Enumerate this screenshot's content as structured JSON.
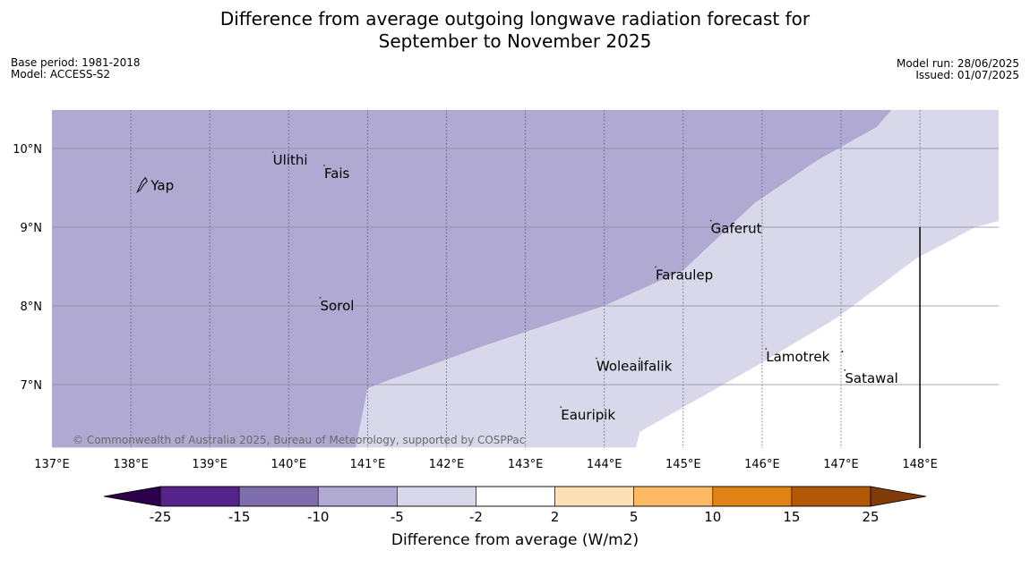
{
  "title": {
    "line1": "Difference from average outgoing longwave radiation forecast for",
    "line2": "September to November 2025"
  },
  "meta": {
    "base_period": "Base period: 1981-2018",
    "model": "Model: ACCESS-S2",
    "model_run": "Model run: 28/06/2025",
    "issued": "Issued: 01/07/2025"
  },
  "map": {
    "lon_range": [
      137,
      149
    ],
    "lat_range": [
      6.2,
      10.5
    ],
    "lon_ticks": [
      137,
      138,
      139,
      140,
      141,
      142,
      143,
      144,
      145,
      146,
      147,
      148
    ],
    "lon_tick_labels": [
      "137°E",
      "138°E",
      "139°E",
      "140°E",
      "141°E",
      "142°E",
      "143°E",
      "144°E",
      "145°E",
      "146°E",
      "147°E",
      "148°E"
    ],
    "lat_ticks": [
      7,
      8,
      9,
      10
    ],
    "lat_tick_labels": [
      "7°N",
      "8°N",
      "9°N",
      "10°N"
    ],
    "copyright": "© Commonwealth of Australia 2025, Bureau of Meteorology, supported by COSPPac",
    "boundary_line_lon": 148,
    "boundary_line_lat_range": [
      6.2,
      9.0
    ],
    "regions": [
      {
        "name": "anomaly -10 to -5",
        "color": "#b0aad2",
        "boundary": [
          [
            137,
            10.5
          ],
          [
            147.65,
            10.5
          ],
          [
            147.45,
            10.27
          ],
          [
            146.7,
            9.85
          ],
          [
            145.9,
            9.3
          ],
          [
            145.0,
            8.45
          ],
          [
            144.0,
            8.0
          ],
          [
            142.5,
            7.5
          ],
          [
            141.2,
            7.03
          ],
          [
            141.0,
            6.95
          ],
          [
            140.85,
            6.2
          ],
          [
            137,
            6.2
          ]
        ]
      },
      {
        "name": "anomaly -5 to -2",
        "color": "#d8d8ea",
        "boundary": [
          [
            147.65,
            10.5
          ],
          [
            149,
            10.5
          ],
          [
            149,
            9.08
          ],
          [
            148.7,
            9.0
          ],
          [
            147.95,
            8.6
          ],
          [
            146.95,
            7.85
          ],
          [
            145.95,
            7.25
          ],
          [
            144.45,
            6.4
          ],
          [
            144.4,
            6.2
          ],
          [
            140.85,
            6.2
          ],
          [
            141.0,
            6.95
          ],
          [
            141.2,
            7.03
          ],
          [
            142.5,
            7.5
          ],
          [
            144.0,
            8.0
          ],
          [
            145.0,
            8.45
          ],
          [
            145.9,
            9.3
          ],
          [
            146.7,
            9.85
          ],
          [
            147.45,
            10.27
          ]
        ]
      }
    ],
    "places": [
      {
        "name": "Ulithi",
        "lon": 139.8,
        "lat": 9.92
      },
      {
        "name": "Fais",
        "lon": 140.45,
        "lat": 9.75
      },
      {
        "name": "Yap",
        "lon": 138.15,
        "lat": 9.55
      },
      {
        "name": "Gaferut",
        "lon": 145.35,
        "lat": 9.05
      },
      {
        "name": "Faraulep",
        "lon": 144.65,
        "lat": 8.46
      },
      {
        "name": "Sorol",
        "lon": 140.4,
        "lat": 8.07
      },
      {
        "name": "Lamotrek",
        "lon": 146.05,
        "lat": 7.42
      },
      {
        "name": "Woleai",
        "lon": 143.9,
        "lat": 7.3
      },
      {
        "name": "Ifalik",
        "lon": 144.45,
        "lat": 7.3
      },
      {
        "name": "Satawal",
        "lon": 147.05,
        "lat": 7.15
      },
      {
        "name": "Eauripik",
        "lon": 143.45,
        "lat": 6.68
      }
    ],
    "extra_dot": {
      "lon": 147.05,
      "lat": 7.42
    }
  },
  "legend": {
    "title": "Difference from average (W/m2)",
    "tick_labels": [
      "-25",
      "-15",
      "-10",
      "-5",
      "-2",
      "2",
      "5",
      "10",
      "15",
      "25"
    ],
    "colors": [
      "#55238a",
      "#7e6dab",
      "#b0aad2",
      "#d8d8ea",
      "#ffffff",
      "#fee0b6",
      "#fdb863",
      "#e08214",
      "#b35806"
    ],
    "extend_low_color": "#2d004b",
    "extend_high_color": "#7f3b08"
  }
}
